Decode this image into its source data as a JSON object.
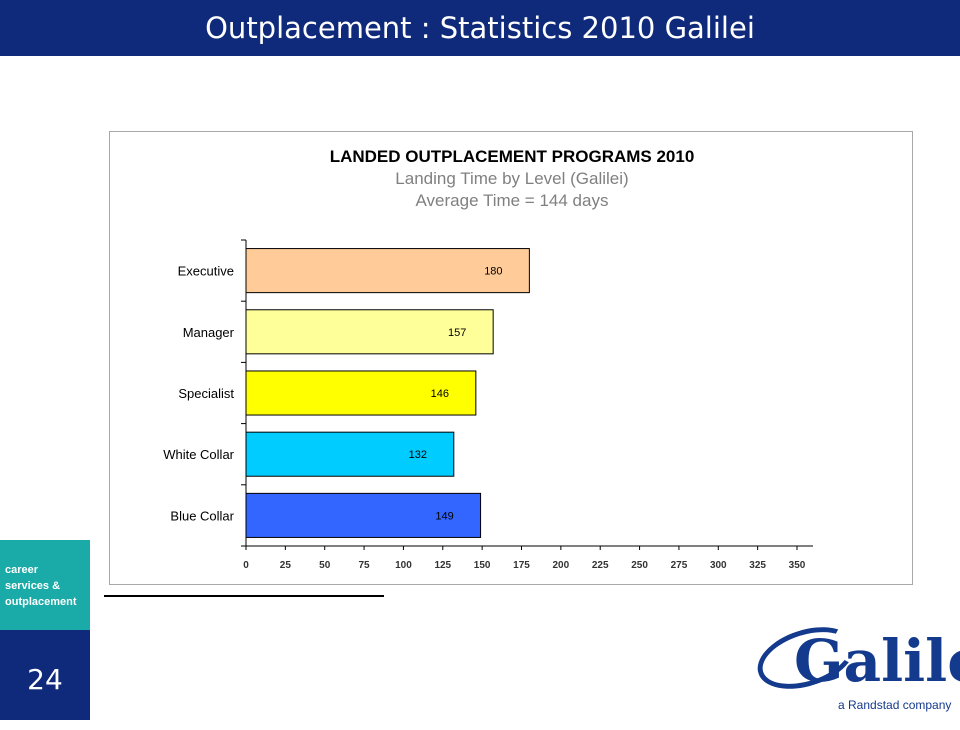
{
  "slide": {
    "title": "Outplacement : Statistics 2010 Galilei",
    "side_tag_lines": [
      "career",
      "services &",
      "outplacement"
    ],
    "page_number": "24"
  },
  "logo": {
    "word": "Galilei",
    "tagline": "a Randstad company",
    "color": "#133a8c"
  },
  "chart_data": {
    "type": "bar",
    "orientation": "horizontal",
    "title": "LANDED OUTPLACEMENT PROGRAMS 2010",
    "subtitle": "Landing Time by Level (Galilei)",
    "subtitle2": "Average Time = 144 days",
    "categories": [
      "Executive",
      "Manager",
      "Specialist",
      "White Collar",
      "Blue Collar"
    ],
    "values": [
      180,
      157,
      146,
      132,
      149
    ],
    "colors": [
      "#ffcc99",
      "#ffff99",
      "#ffff00",
      "#00ccff",
      "#3366ff"
    ],
    "xlim": [
      0,
      350
    ],
    "xticks": [
      "0",
      "25",
      "50",
      "75",
      "100",
      "125",
      "150",
      "175",
      "200",
      "225",
      "250",
      "275",
      "300",
      "325",
      "350"
    ],
    "grid": false,
    "legend": "none"
  }
}
